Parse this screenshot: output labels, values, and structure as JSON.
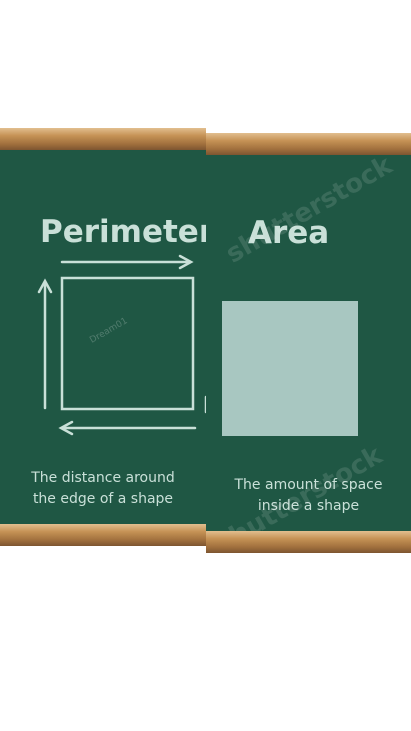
{
  "perimeter": {
    "title": "Perimeter",
    "caption_line1": "The distance around",
    "caption_line2": "the edge of a shape"
  },
  "area": {
    "title": "Area",
    "caption_line1": "The amount of space",
    "caption_line2": "inside a shape"
  },
  "watermark": {
    "main": "shutterstock",
    "author": "Dream01"
  },
  "colors": {
    "board_green": "#1f5744",
    "chalk": "#c9e0d8",
    "area_fill": "#a8c7c1",
    "frame_wood": "#c59255"
  }
}
